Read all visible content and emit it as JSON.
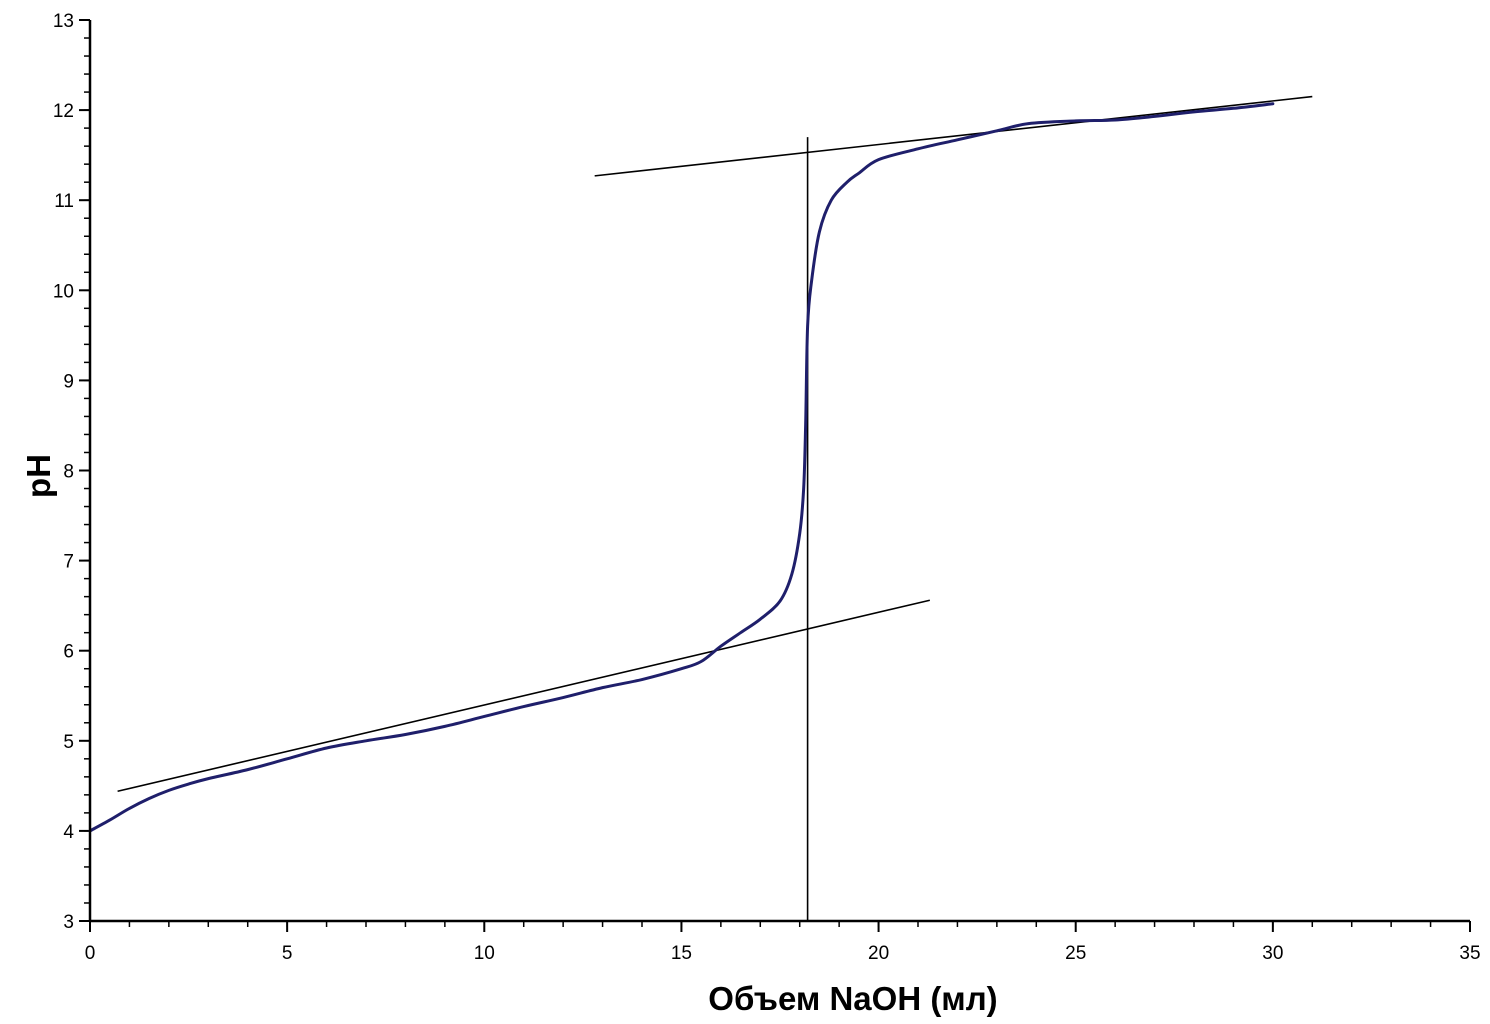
{
  "chart_data": {
    "type": "line",
    "title": "",
    "xlabel": "Объем NaOH (мл)",
    "ylabel": "pH",
    "xlim": [
      0,
      35
    ],
    "ylim": [
      3,
      13
    ],
    "xticks": [
      0,
      5,
      10,
      15,
      20,
      25,
      30,
      35
    ],
    "yticks": [
      3,
      4,
      5,
      6,
      7,
      8,
      9,
      10,
      11,
      12,
      13
    ],
    "x_minor_step": 1,
    "y_minor_step": 0.2,
    "grid": false,
    "legend": "none",
    "colors": {
      "curve": "#1f1f6b",
      "lines": "#000000",
      "axes": "#000000"
    },
    "series": [
      {
        "points": [
          [
            0,
            4.0
          ],
          [
            0.5,
            4.12
          ],
          [
            1,
            4.25
          ],
          [
            1.5,
            4.36
          ],
          [
            2,
            4.45
          ],
          [
            2.5,
            4.52
          ],
          [
            3,
            4.58
          ],
          [
            4,
            4.68
          ],
          [
            5,
            4.8
          ],
          [
            6,
            4.92
          ],
          [
            7,
            5.0
          ],
          [
            8,
            5.07
          ],
          [
            9,
            5.16
          ],
          [
            10,
            5.27
          ],
          [
            11,
            5.38
          ],
          [
            12,
            5.48
          ],
          [
            13,
            5.59
          ],
          [
            14,
            5.68
          ],
          [
            15,
            5.8
          ],
          [
            15.5,
            5.88
          ],
          [
            16,
            6.05
          ],
          [
            16.5,
            6.2
          ],
          [
            17,
            6.35
          ],
          [
            17.5,
            6.55
          ],
          [
            17.8,
            6.85
          ],
          [
            18.0,
            7.3
          ],
          [
            18.1,
            7.8
          ],
          [
            18.15,
            8.5
          ],
          [
            18.2,
            9.6
          ],
          [
            18.3,
            10.1
          ],
          [
            18.5,
            10.65
          ],
          [
            18.8,
            11.0
          ],
          [
            19.2,
            11.2
          ],
          [
            19.5,
            11.3
          ],
          [
            20,
            11.45
          ],
          [
            21,
            11.57
          ],
          [
            22,
            11.67
          ],
          [
            23,
            11.77
          ],
          [
            23.8,
            11.85
          ],
          [
            25,
            11.88
          ],
          [
            26,
            11.89
          ],
          [
            27,
            11.93
          ],
          [
            28,
            11.98
          ],
          [
            29,
            12.02
          ],
          [
            30,
            12.07
          ]
        ]
      }
    ],
    "tangent_lines": [
      {
        "from": [
          0.7,
          4.44
        ],
        "to": [
          21.3,
          6.56
        ]
      },
      {
        "from": [
          12.8,
          11.27
        ],
        "to": [
          31.0,
          12.15
        ]
      }
    ],
    "equivalence_line": {
      "x": 18.2,
      "y_from": 3,
      "y_to": 11.7
    }
  }
}
